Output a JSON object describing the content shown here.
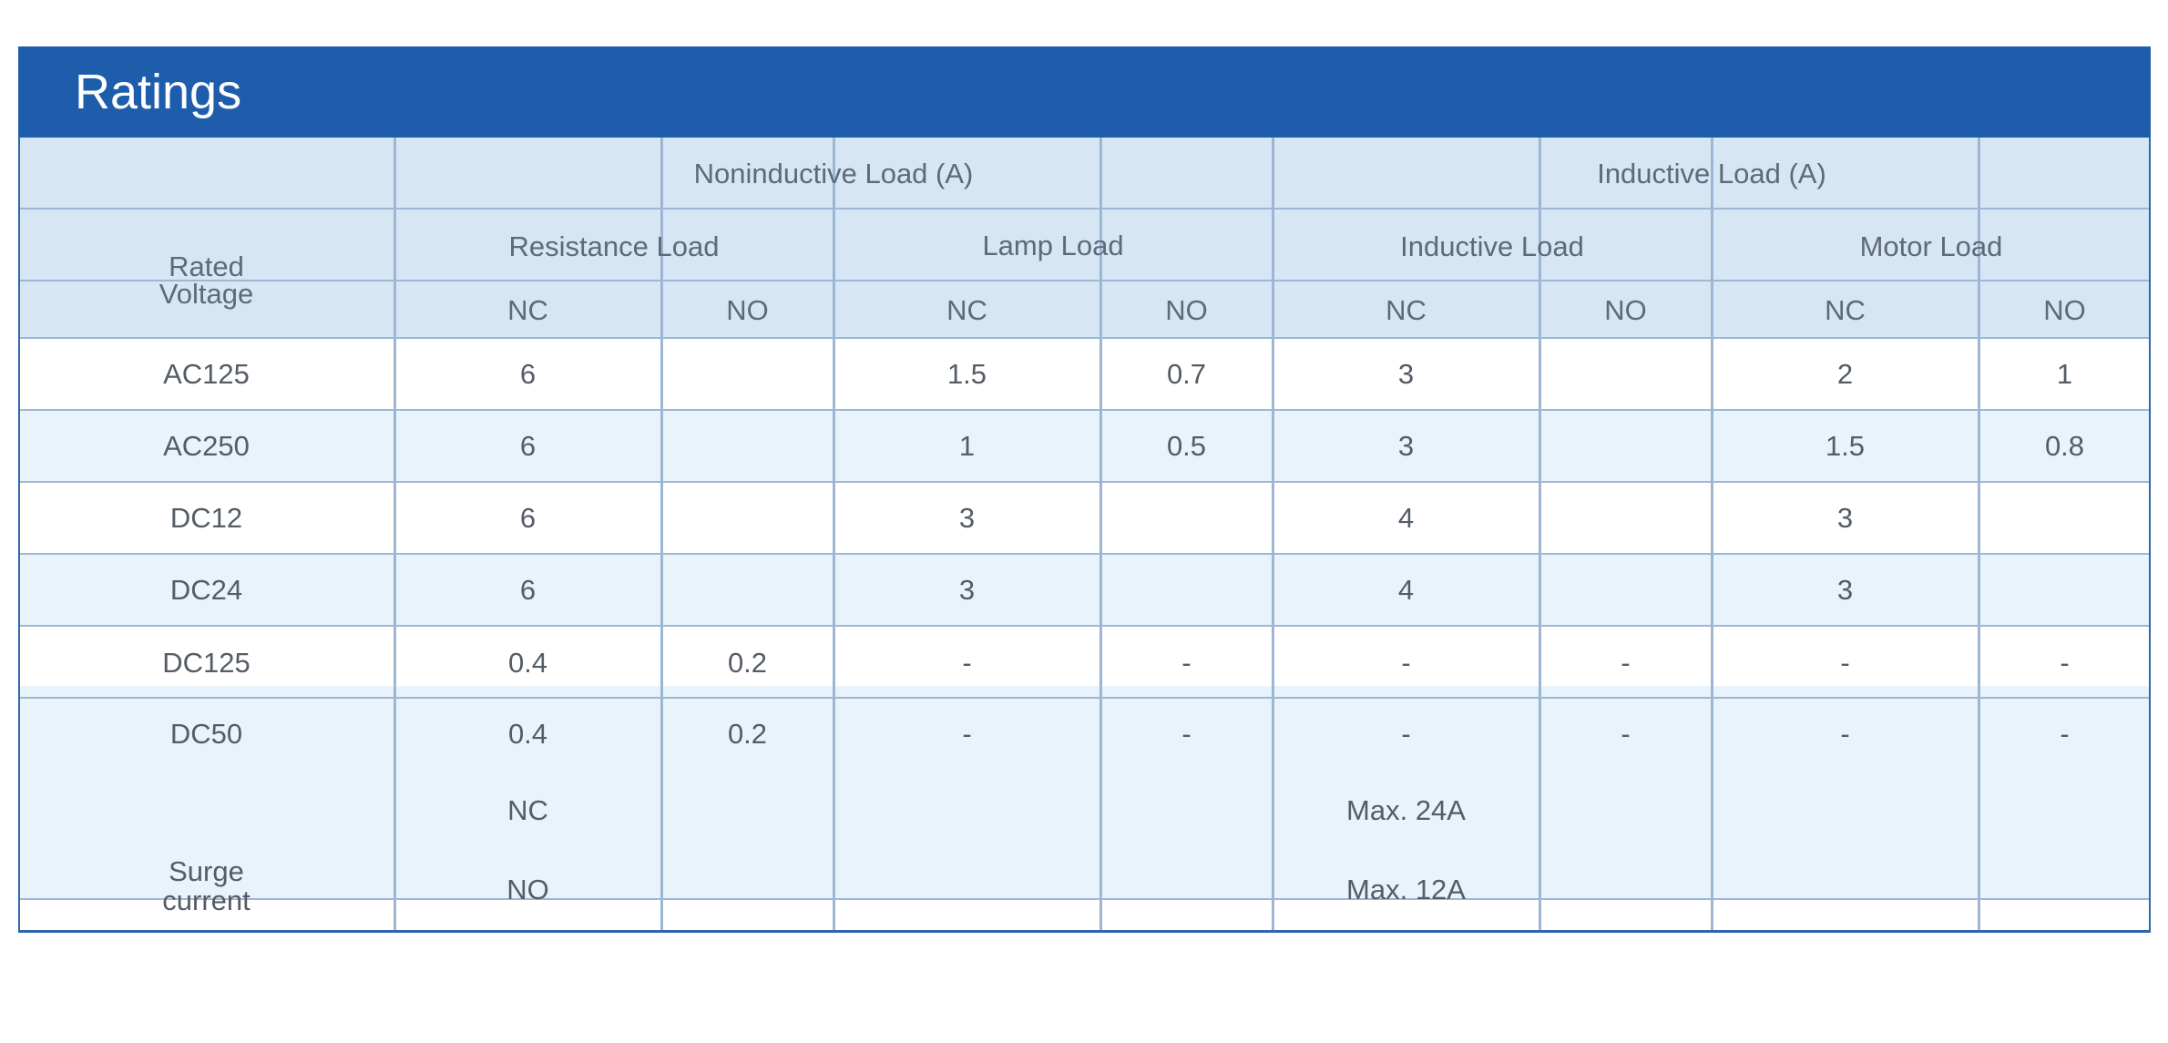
{
  "title": "Ratings",
  "headers": {
    "rated_voltage": [
      "Rated",
      "Voltage"
    ],
    "noninductive_load": "Noninductive Load (A)",
    "inductive_load_group": "Inductive Load (A)",
    "resistance_load": "Resistance Load",
    "lamp_load": "Lamp Load",
    "inductive_load": "Inductive Load",
    "motor_load": "Motor Load",
    "contacts": [
      "NC",
      "NO",
      "NC",
      "NO",
      "NC",
      "NO",
      "NC",
      "NO"
    ]
  },
  "rows": [
    {
      "voltage": "AC125",
      "values": [
        "6",
        "",
        "1.5",
        "0.7",
        "3",
        "",
        "2",
        "1"
      ]
    },
    {
      "voltage": "AC250",
      "values": [
        "6",
        "",
        "1",
        "0.5",
        "3",
        "",
        "1.5",
        "0.8"
      ]
    },
    {
      "voltage": "DC12",
      "values": [
        "6",
        "",
        "3",
        "",
        "4",
        "",
        "3",
        ""
      ]
    },
    {
      "voltage": "DC24",
      "values": [
        "6",
        "",
        "3",
        "",
        "4",
        "",
        "3",
        ""
      ]
    },
    {
      "voltage": "DC125",
      "values": [
        "0.4",
        "0.2",
        "-",
        "-",
        "-",
        "-",
        "-",
        "-"
      ]
    },
    {
      "voltage": "DC50",
      "values": [
        "0.4",
        "0.2",
        "-",
        "-",
        "-",
        "-",
        "-",
        "-"
      ]
    }
  ],
  "surge": {
    "label": [
      "Surge",
      "current"
    ],
    "nc_label": "NC",
    "nc_value": "Max. 24A",
    "no_label": "NO",
    "no_value": "Max. 12A"
  },
  "colors": {
    "header_bar": "#1d5dab",
    "table_header": "#d6e6f5",
    "row_alt": "#e8f3fb",
    "row_white": "#ffffff",
    "grid_line": "#9db7d3",
    "frame": "#2d67ad"
  }
}
